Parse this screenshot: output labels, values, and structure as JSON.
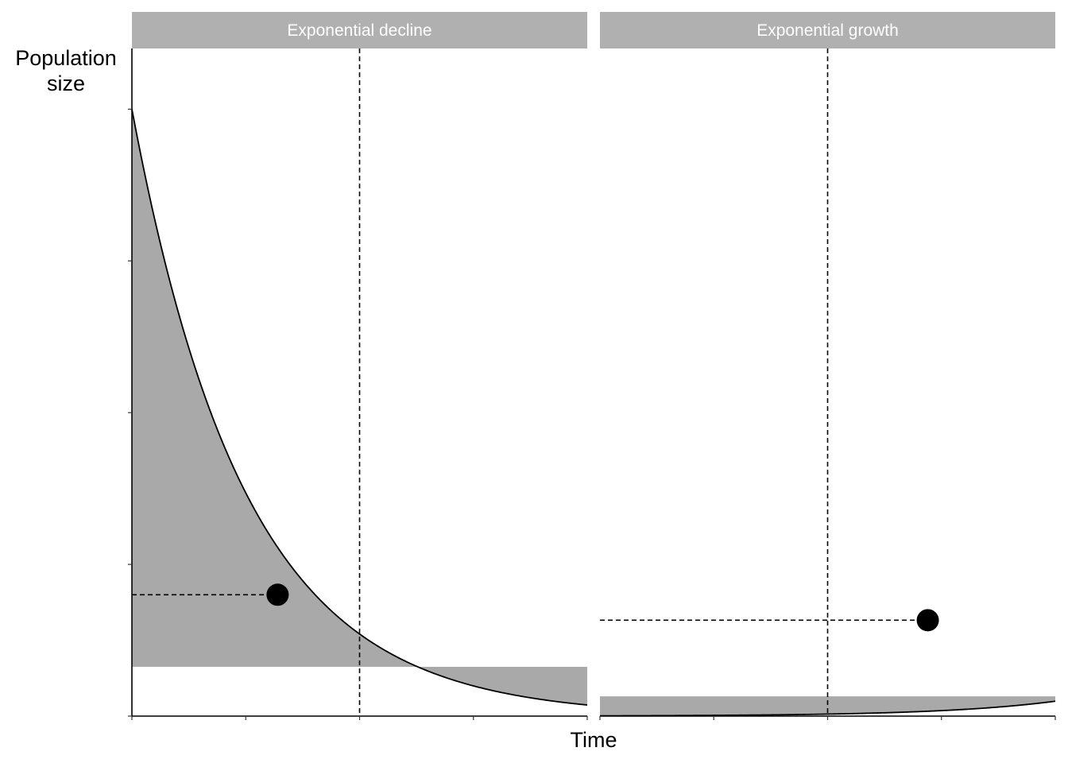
{
  "chart_data": {
    "type": "area",
    "xlabel": "Time",
    "ylabel_lines": [
      "Population",
      "size"
    ],
    "colors": {
      "fill": "#a9a9a9",
      "strip": "#b0b0b0",
      "line": "#000000",
      "panel_bg": "#ffffff"
    },
    "x_ticks": [
      0,
      2.5,
      5,
      7.5,
      10
    ],
    "y_ticks": [
      0,
      0.25,
      0.5,
      0.75,
      1
    ],
    "tick_labels_shown": false,
    "grid": false,
    "xlim": [
      0,
      10
    ],
    "ylim": [
      0,
      1.1
    ],
    "panels": [
      {
        "title": "Exponential decline",
        "curve": {
          "type": "exponential",
          "a": 1.0,
          "r": -0.4,
          "x": [
            0,
            10
          ]
        },
        "reference_x": 5,
        "reference_y": 0.0812,
        "point": {
          "x": 3.2,
          "y": 0.2
        },
        "shading": "between-curve-and-reference-level"
      },
      {
        "title": "Exponential growth",
        "curve": {
          "type": "exponential",
          "a": 0.00045,
          "r": 0.4,
          "x": [
            0,
            10
          ]
        },
        "reference_x": 5,
        "reference_y": 0.0325,
        "point": {
          "x": 7.2,
          "y": 0.158
        },
        "shading": "between-curve-and-reference-level"
      }
    ]
  }
}
